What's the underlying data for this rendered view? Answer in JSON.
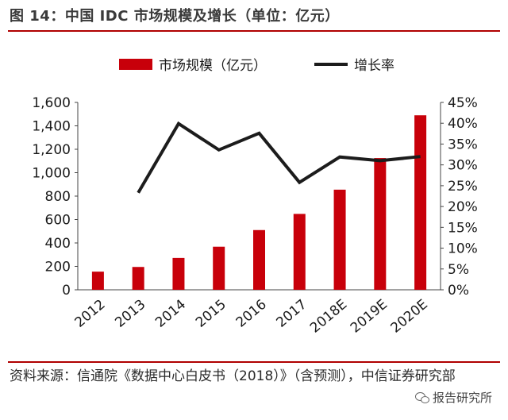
{
  "figure": {
    "title": "图 14：中国 IDC 市场规模及增长（单位：亿元）",
    "source": "资料来源：信通院《数据中心白皮书（2018）》（含预测），中信证券研究部",
    "watermark": "报告研究所"
  },
  "colors": {
    "bar": "#c8000a",
    "line": "#1c1c1c",
    "rule": "#b00000"
  },
  "chart_data": {
    "type": "bar",
    "categories": [
      "2012",
      "2013",
      "2014",
      "2015",
      "2016",
      "2017",
      "2018E",
      "2019E",
      "2020E"
    ],
    "series": [
      {
        "name": "市场规模（亿元）",
        "kind": "bar",
        "axis": "left",
        "values": [
          155,
          195,
          272,
          368,
          510,
          648,
          855,
          1125,
          1490
        ]
      },
      {
        "name": "增长率",
        "kind": "line",
        "axis": "right",
        "values": [
          null,
          23.3,
          39.9,
          33.6,
          37.6,
          25.8,
          31.9,
          31.0,
          32.0
        ]
      }
    ],
    "ylim": [
      0,
      1600
    ],
    "yticks": [
      "0",
      "200",
      "400",
      "600",
      "800",
      "1,000",
      "1,200",
      "1,400",
      "1,600"
    ],
    "y2lim": [
      0,
      45
    ],
    "y2ticks": [
      "0%",
      "5%",
      "10%",
      "15%",
      "20%",
      "25%",
      "30%",
      "35%",
      "40%",
      "45%"
    ],
    "legend_position": "top-center",
    "grid": false
  }
}
